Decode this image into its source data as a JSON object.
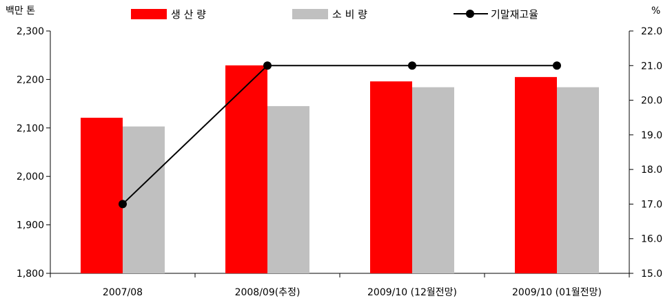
{
  "chart_data": {
    "type": "bar",
    "categories": [
      "2007/08",
      "2008/09(추정)",
      "2009/10 (12월전망)",
      "2009/10 (01월전망)"
    ],
    "series": [
      {
        "name": "생 산 량",
        "kind": "bar",
        "axis": "left",
        "color": "#ff0000",
        "values": [
          2121,
          2229,
          2196,
          2205
        ]
      },
      {
        "name": "소 비 량",
        "kind": "bar",
        "axis": "left",
        "color": "#c0c0c0",
        "values": [
          2103,
          2145,
          2184,
          2184
        ]
      },
      {
        "name": "기말재고율",
        "kind": "line",
        "axis": "right",
        "color": "#000000",
        "values": [
          17.0,
          21.0,
          21.0,
          21.0
        ]
      }
    ],
    "y_left": {
      "label": "백만 톤",
      "range": [
        1800,
        2300
      ],
      "ticks": [
        "1,800",
        "1,900",
        "2,000",
        "2,100",
        "2,200",
        "2,300"
      ]
    },
    "y_right": {
      "label": "%",
      "range": [
        15.0,
        22.0
      ],
      "ticks": [
        "15.0",
        "16.0",
        "17.0",
        "18.0",
        "19.0",
        "20.0",
        "21.0",
        "22.0"
      ]
    },
    "grid": false,
    "legend": "top"
  }
}
